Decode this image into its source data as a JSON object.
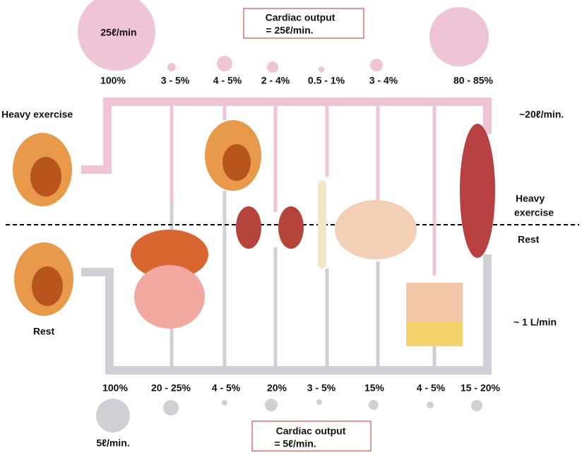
{
  "top": {
    "box": [
      "Cardiac output",
      "= 25ℓ/min."
    ],
    "heart_flow": "25ℓ/min",
    "percentages": [
      "100%",
      "3 - 5%",
      "4 - 5%",
      "2 - 4%",
      "0.5 - 1%",
      "3 - 4%",
      "80 - 85%"
    ]
  },
  "labels": {
    "left_exercise": "Heavy exercise",
    "left_rest": "Rest",
    "right_exercise": [
      "Heavy",
      "exercise"
    ],
    "right_rest": "Rest",
    "muscle_exercise": "~20ℓ/min.",
    "skin_rest": "~ 1 L/min"
  },
  "bottom": {
    "percentages": [
      "100%",
      "20 - 25%",
      "4 - 5%",
      "20%",
      "3 - 5%",
      "15%",
      "4 - 5%",
      "15 - 20%"
    ],
    "heart_flow": "5ℓ/min.",
    "box": [
      "Cardiac output",
      "= 5ℓ/min."
    ]
  }
}
